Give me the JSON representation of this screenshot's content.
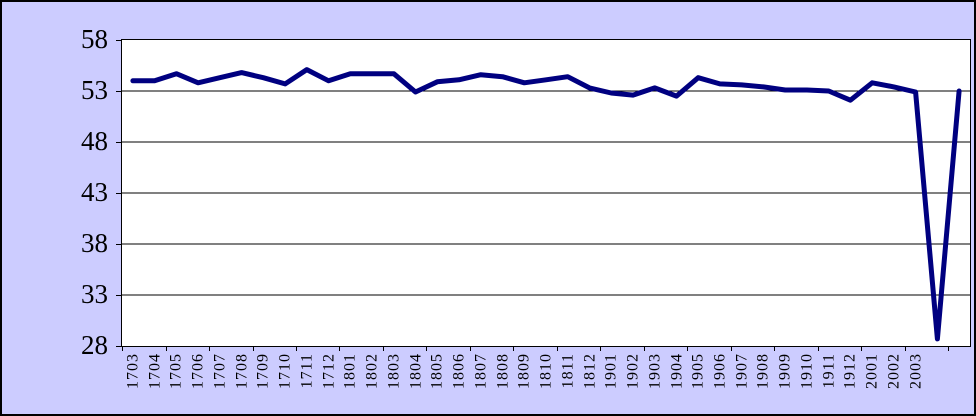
{
  "chart_data": {
    "type": "line",
    "categories": [
      "1703",
      "1704",
      "1705",
      "1706",
      "1707",
      "1708",
      "1709",
      "1710",
      "1711",
      "1712",
      "1801",
      "1802",
      "1803",
      "1804",
      "1805",
      "1806",
      "1807",
      "1808",
      "1809",
      "1810",
      "1811",
      "1812",
      "1901",
      "1902",
      "1903",
      "1904",
      "1905",
      "1906",
      "1907",
      "1908",
      "1909",
      "1910",
      "1911",
      "1912",
      "2001",
      "2002",
      "2003",
      "",
      ""
    ],
    "values": [
      54.0,
      54.0,
      54.7,
      53.8,
      54.3,
      54.8,
      54.3,
      53.7,
      55.1,
      54.0,
      54.7,
      54.7,
      54.7,
      52.9,
      53.9,
      54.1,
      54.6,
      54.4,
      53.8,
      54.1,
      54.4,
      53.3,
      52.8,
      52.6,
      53.3,
      52.5,
      54.3,
      53.7,
      53.6,
      53.4,
      53.1,
      53.1,
      53.0,
      52.1,
      53.8,
      53.4,
      52.9,
      28.7,
      53.0
    ],
    "ylim": [
      28,
      58
    ],
    "y_ticks": [
      28,
      33,
      38,
      43,
      48,
      53,
      58
    ],
    "x_tick_interval": 2,
    "grid": true,
    "legend_position": "none",
    "line_width": 5,
    "colors": {
      "line": "#000080",
      "canvas_background": "#CCCCFF",
      "plot_background": "#FFFFFF",
      "gridline": "#000000",
      "axis": "#000000",
      "text": "#000000"
    }
  }
}
